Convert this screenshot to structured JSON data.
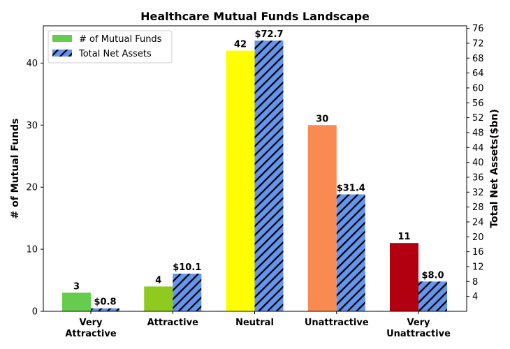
{
  "chart_data": {
    "type": "bar",
    "title": "Healthcare Mutual Funds Landscape",
    "categories": [
      "Very\nAttractive",
      "Attractive",
      "Neutral",
      "Unattractive",
      "Very\nUnattractive"
    ],
    "series": [
      {
        "name": "# of Mutual Funds",
        "axis": "left",
        "values": [
          3,
          4,
          42,
          30,
          11
        ],
        "labels": [
          "3",
          "4",
          "42",
          "30",
          "11"
        ],
        "colors": [
          "#66cc4d",
          "#8fca1e",
          "#ffff00",
          "#f98a52",
          "#b30010"
        ]
      },
      {
        "name": "Total Net Assets",
        "axis": "right",
        "values": [
          0.8,
          10.1,
          72.7,
          31.4,
          8.0
        ],
        "labels": [
          "$0.8",
          "$10.1",
          "$72.7",
          "$31.4",
          "$8.0"
        ],
        "color": "#6495ed",
        "hatch": "diagonal"
      }
    ],
    "ylabel": "# of Mutual Funds",
    "ylabel_right": "Total Net Assets($bn)",
    "ylim": [
      0,
      46
    ],
    "ylim_right": [
      0,
      76.67
    ],
    "yticks": [
      0,
      10,
      20,
      30,
      40
    ],
    "yticks_right": [
      4,
      8,
      12,
      16,
      20,
      24,
      28,
      32,
      36,
      40,
      44,
      48,
      52,
      56,
      60,
      64,
      68,
      72,
      76
    ],
    "legend_position": "top-left",
    "grid": false
  }
}
